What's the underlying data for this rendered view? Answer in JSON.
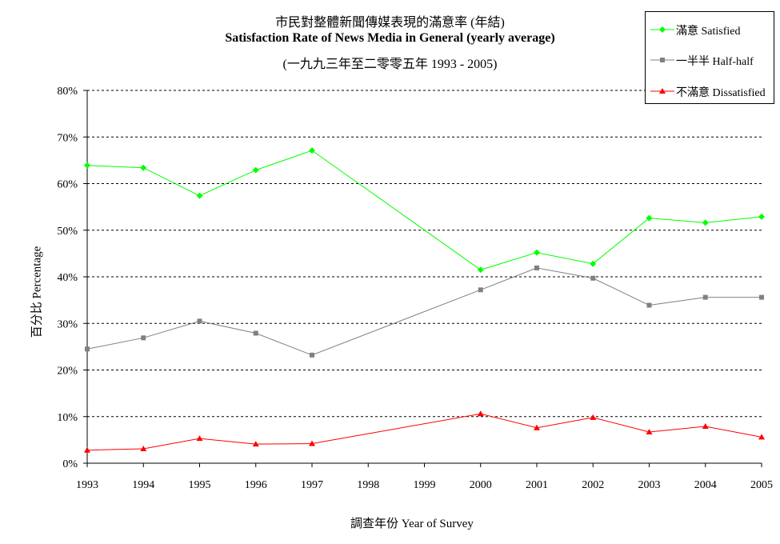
{
  "chart_data": {
    "type": "line",
    "title": "市民對整體新聞傳媒表現的滿意率 (年結)",
    "subtitle": "Satisfaction Rate of News Media in General (yearly average)",
    "subtitle2": "(一九九三年至二零零五年 1993 - 2005)",
    "xlabel": "調查年份 Year of Survey",
    "ylabel": "百分比 Percentage",
    "categories": [
      "1993",
      "1994",
      "1995",
      "1996",
      "1997",
      "1998",
      "1999",
      "2000",
      "2001",
      "2002",
      "2003",
      "2004",
      "2005"
    ],
    "ylim": [
      0,
      80
    ],
    "yticks": [
      "0%",
      "10%",
      "20%",
      "30%",
      "40%",
      "50%",
      "60%",
      "70%",
      "80%"
    ],
    "grid": true,
    "legend_position": "top-right",
    "series": [
      {
        "name": "滿意 Satisfied",
        "color": "#00ff00",
        "marker": "diamond",
        "values": [
          63.9,
          63.4,
          57.4,
          62.9,
          67.1,
          null,
          null,
          41.5,
          45.2,
          42.8,
          52.6,
          51.6,
          52.9
        ]
      },
      {
        "name": "一半半 Half-half",
        "color": "#808080",
        "marker": "square",
        "values": [
          24.5,
          26.9,
          30.5,
          27.9,
          23.2,
          null,
          null,
          37.2,
          41.9,
          39.7,
          33.9,
          35.6,
          35.6
        ]
      },
      {
        "name": "不滿意 Dissatisfied",
        "color": "#ff0000",
        "marker": "triangle",
        "values": [
          2.8,
          3.1,
          5.3,
          4.1,
          4.2,
          null,
          null,
          10.6,
          7.6,
          9.8,
          6.7,
          7.9,
          5.6
        ]
      }
    ]
  }
}
